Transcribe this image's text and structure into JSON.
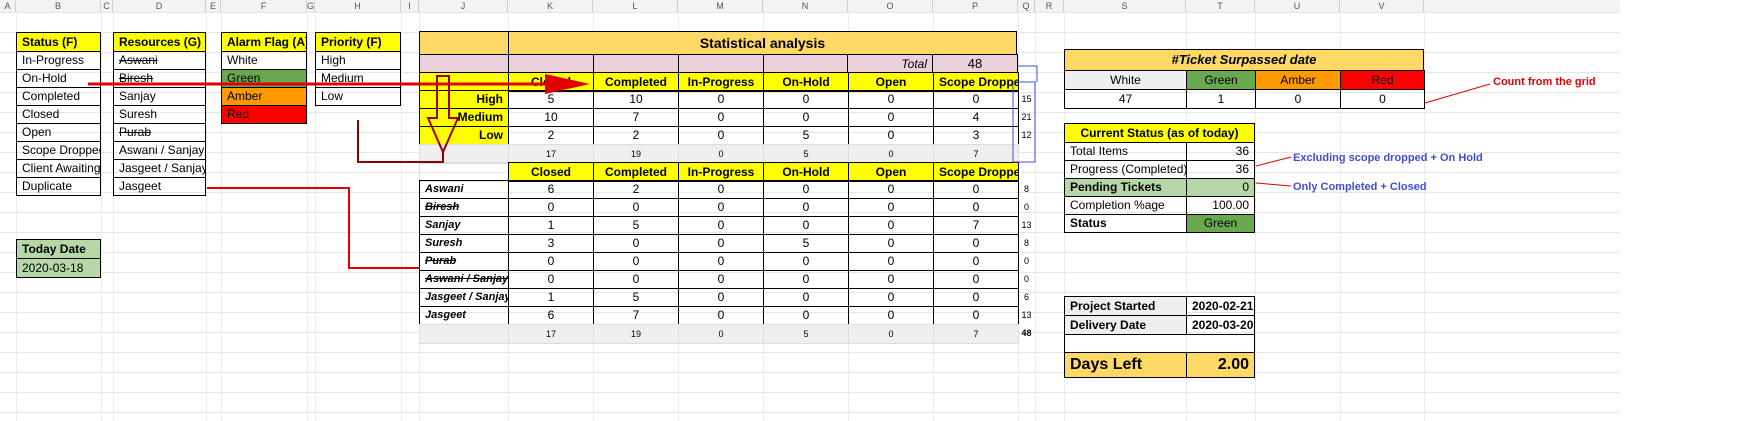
{
  "columns": [
    "A",
    "B",
    "C",
    "D",
    "E",
    "F",
    "G",
    "H",
    "I",
    "J",
    "K",
    "L",
    "M",
    "N",
    "O",
    "P",
    "Q",
    "R",
    "S",
    "T",
    "U",
    "V"
  ],
  "status_list": {
    "header": "Status (F)",
    "items": [
      "In-Progress",
      "On-Hold",
      "Completed",
      "Closed",
      "Open",
      "Scope Dropped",
      "Client Awaiting",
      "Duplicate"
    ]
  },
  "resources_list": {
    "header": "Resources (G)",
    "items": [
      "Aswani",
      "Biresh",
      "Sanjay",
      "Suresh",
      "Purab",
      "Aswani / Sanjay",
      "Jasgeet / Sanjay",
      "Jasgeet"
    ]
  },
  "alarm_list": {
    "header": "Alarm Flag (A)",
    "items": [
      "White",
      "Green",
      "Amber",
      "Red"
    ]
  },
  "priority_list": {
    "header": "Priority (F)",
    "items": [
      "High",
      "Medium",
      "Low"
    ]
  },
  "today": {
    "label": "Today Date",
    "value": "2020-03-18"
  },
  "stats": {
    "title": "Statistical analysis",
    "total_label": "Total",
    "total_value": "48",
    "columns": [
      "Closed",
      "Completed",
      "In-Progress",
      "On-Hold",
      "Open",
      "Scope Dropped"
    ],
    "priority_rows": [
      {
        "label": "High",
        "values": [
          "5",
          "10",
          "0",
          "0",
          "0",
          "0"
        ],
        "total": "15"
      },
      {
        "label": "Medium",
        "values": [
          "10",
          "7",
          "0",
          "0",
          "0",
          "4"
        ],
        "total": "21"
      },
      {
        "label": "Low",
        "values": [
          "2",
          "2",
          "0",
          "5",
          "0",
          "3"
        ],
        "total": "12"
      }
    ],
    "priority_totals": [
      "17",
      "19",
      "0",
      "5",
      "0",
      "7"
    ],
    "resource_rows": [
      {
        "label": "Aswani",
        "values": [
          "6",
          "2",
          "0",
          "0",
          "0",
          "0"
        ],
        "total": "8"
      },
      {
        "label": "Biresh",
        "values": [
          "0",
          "0",
          "0",
          "0",
          "0",
          "0"
        ],
        "total": "0"
      },
      {
        "label": "Sanjay",
        "values": [
          "1",
          "5",
          "0",
          "0",
          "0",
          "7"
        ],
        "total": "13"
      },
      {
        "label": "Suresh",
        "values": [
          "3",
          "0",
          "0",
          "5",
          "0",
          "0"
        ],
        "total": "8"
      },
      {
        "label": "Purab",
        "values": [
          "0",
          "0",
          "0",
          "0",
          "0",
          "0"
        ],
        "total": "0"
      },
      {
        "label": "Aswani / Sanjay",
        "values": [
          "0",
          "0",
          "0",
          "0",
          "0",
          "0"
        ],
        "total": "0"
      },
      {
        "label": "Jasgeet / Sanjay",
        "values": [
          "1",
          "5",
          "0",
          "0",
          "0",
          "0"
        ],
        "total": "6"
      },
      {
        "label": "Jasgeet",
        "values": [
          "6",
          "7",
          "0",
          "0",
          "0",
          "0"
        ],
        "total": "13"
      }
    ],
    "resource_totals": [
      "17",
      "19",
      "0",
      "5",
      "0",
      "7"
    ],
    "grand_total": "48"
  },
  "surpassed": {
    "title": "#Ticket Surpassed date",
    "headers": [
      "White",
      "Green",
      "Amber",
      "Red"
    ],
    "values": [
      "47",
      "1",
      "0",
      "0"
    ]
  },
  "current_status": {
    "title": "Current Status (as of today)",
    "rows": [
      {
        "label": "Total Items",
        "value": "36"
      },
      {
        "label": "Progress (Completed)",
        "value": "36"
      },
      {
        "label": "Pending Tickets",
        "value": "0"
      },
      {
        "label": "Completion %age",
        "value": "100.00"
      },
      {
        "label": "Status",
        "value": "Green"
      }
    ]
  },
  "project": {
    "started_label": "Project Started",
    "started_value": "2020-02-21",
    "delivery_label": "Delivery Date",
    "delivery_value": "2020-03-20"
  },
  "days_left": {
    "label": "Days Left",
    "value": "2.00"
  },
  "annotations": {
    "count_grid": "Count from the grid",
    "excluding": "Excluding scope dropped + On Hold",
    "only_completed": "Only Completed + Closed"
  },
  "colors": {
    "yellow": "#ffff00",
    "gold": "#ffd966",
    "green": "#6aa84f",
    "amber": "#ff9900",
    "red": "#ff0000",
    "arrow_red": "#e00000",
    "dark_red": "#8b0000",
    "annot_blue": "#3c4fd6"
  }
}
